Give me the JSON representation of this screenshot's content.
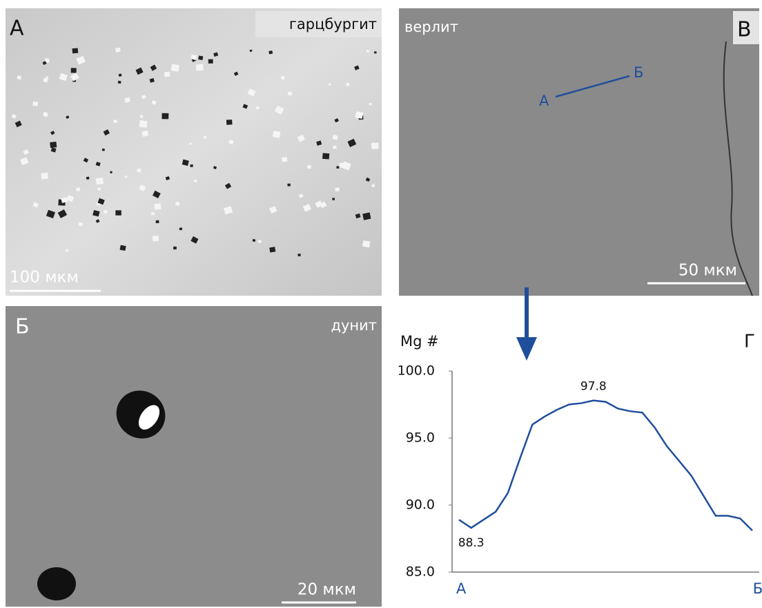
{
  "panels": [
    {
      "letter": "А",
      "label": "гарцбургит",
      "scale": "100 мкм"
    },
    {
      "letter": "В",
      "label": "верлит",
      "scale": "50 мкм",
      "profile_start": "А",
      "profile_end": "Б"
    },
    {
      "letter": "Б",
      "label": "дунит",
      "scale": "20 мкм"
    }
  ],
  "chart_data": {
    "type": "line",
    "letter": "Г",
    "y_label": "Mg #",
    "categories": [
      "А",
      null,
      null,
      null,
      null,
      null,
      null,
      null,
      null,
      null,
      null,
      null,
      null,
      null,
      null,
      null,
      null,
      null,
      null,
      null,
      null,
      null,
      null,
      null,
      "Б"
    ],
    "series": [
      {
        "color": "#1f4e9c",
        "values": [
          88.9,
          88.3,
          88.9,
          89.5,
          90.9,
          93.5,
          96.0,
          96.6,
          97.1,
          97.5,
          97.6,
          97.8,
          97.7,
          97.2,
          97.0,
          96.9,
          95.8,
          94.4,
          93.3,
          92.2,
          90.7,
          89.2,
          89.2,
          89.0,
          88.1
        ],
        "value_labels": [
          null,
          "88.3",
          null,
          null,
          null,
          null,
          null,
          null,
          null,
          null,
          null,
          "97.8",
          null,
          null,
          null,
          null,
          null,
          null,
          null,
          null,
          null,
          null,
          null,
          null,
          null
        ]
      }
    ],
    "ylim": [
      85,
      100
    ],
    "yticks": [
      {
        "value": 85,
        "label": "85.0"
      },
      {
        "value": 90,
        "label": "90.0"
      },
      {
        "value": 95,
        "label": "95.0"
      },
      {
        "value": 100,
        "label": "100.0"
      }
    ]
  }
}
